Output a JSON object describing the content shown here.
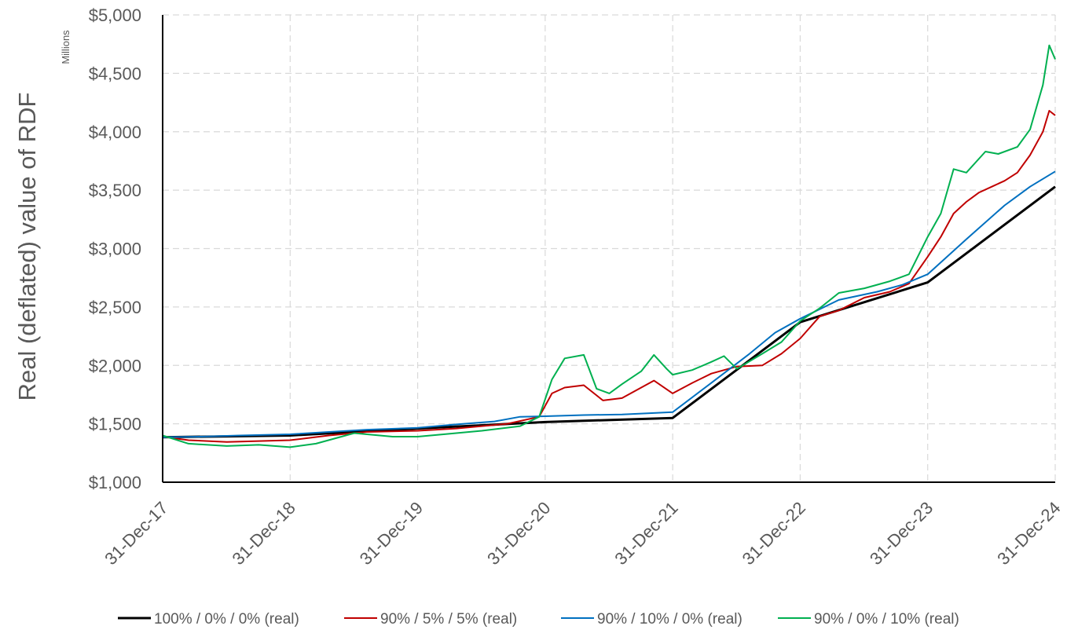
{
  "chart_data": {
    "type": "line",
    "title": "",
    "ylabel": "Real (deflated) value of RDF",
    "yunits": "Millions",
    "xlabel": "",
    "ylim": [
      1000,
      5000
    ],
    "yticks": [
      1000,
      1500,
      2000,
      2500,
      3000,
      3500,
      4000,
      4500,
      5000
    ],
    "ytick_labels": [
      "$1,000",
      "$1,500",
      "$2,000",
      "$2,500",
      "$3,000",
      "$3,500",
      "$4,000",
      "$4,500",
      "$5,000"
    ],
    "xlim": [
      2017.997,
      2024.997
    ],
    "xticks": [
      2017.997,
      2018.997,
      2019.997,
      2020.997,
      2021.997,
      2022.997,
      2023.997,
      2024.997
    ],
    "xtick_labels": [
      "31-Dec-17",
      "31-Dec-18",
      "31-Dec-19",
      "31-Dec-20",
      "31-Dec-21",
      "31-Dec-22",
      "31-Dec-23",
      "31-Dec-24"
    ],
    "grid": true,
    "legend_position": "bottom",
    "series": [
      {
        "name": "100% / 0% / 0% (real)",
        "color": "#000000",
        "x": [
          2017.997,
          2018.997,
          2019.997,
          2020.997,
          2021.997,
          2022.997,
          2023.997,
          2024.997
        ],
        "y": [
          1385,
          1400,
          1460,
          1515,
          1550,
          2370,
          2710,
          3530
        ]
      },
      {
        "name": "90% / 5% / 5% (real)",
        "color": "#c00000",
        "x": [
          2017.997,
          2018.2,
          2018.5,
          2018.997,
          2019.3,
          2019.6,
          2019.997,
          2020.3,
          2020.7,
          2020.95,
          2021.05,
          2021.15,
          2021.3,
          2021.45,
          2021.6,
          2021.75,
          2021.85,
          2021.997,
          2022.15,
          2022.3,
          2022.5,
          2022.7,
          2022.85,
          2022.997,
          2023.15,
          2023.3,
          2023.5,
          2023.7,
          2023.85,
          2023.997,
          2024.1,
          2024.2,
          2024.3,
          2024.4,
          2024.5,
          2024.6,
          2024.7,
          2024.8,
          2024.9,
          2024.95,
          2024.997
        ],
        "y": [
          1390,
          1360,
          1345,
          1360,
          1400,
          1430,
          1440,
          1460,
          1500,
          1560,
          1760,
          1810,
          1830,
          1700,
          1720,
          1810,
          1870,
          1760,
          1850,
          1930,
          1990,
          2000,
          2100,
          2230,
          2420,
          2470,
          2580,
          2630,
          2700,
          2930,
          3100,
          3300,
          3400,
          3480,
          3530,
          3580,
          3650,
          3800,
          4000,
          4180,
          4140
        ]
      },
      {
        "name": "90% / 10% / 0% (real)",
        "color": "#0070c0",
        "x": [
          2017.997,
          2018.3,
          2018.6,
          2018.997,
          2019.3,
          2019.6,
          2019.997,
          2020.3,
          2020.6,
          2020.8,
          2020.997,
          2021.3,
          2021.6,
          2021.8,
          2021.997,
          2022.3,
          2022.6,
          2022.8,
          2022.997,
          2023.3,
          2023.6,
          2023.8,
          2023.997,
          2024.3,
          2024.6,
          2024.8,
          2024.997
        ],
        "y": [
          1385,
          1390,
          1400,
          1410,
          1430,
          1450,
          1465,
          1495,
          1520,
          1560,
          1565,
          1575,
          1580,
          1590,
          1600,
          1850,
          2100,
          2280,
          2400,
          2560,
          2630,
          2690,
          2780,
          3080,
          3370,
          3530,
          3660
        ]
      },
      {
        "name": "90% / 0% / 10% (real)",
        "color": "#00b050",
        "x": [
          2017.997,
          2018.2,
          2018.5,
          2018.75,
          2018.997,
          2019.2,
          2019.5,
          2019.8,
          2019.997,
          2020.2,
          2020.5,
          2020.8,
          2020.95,
          2021.05,
          2021.15,
          2021.3,
          2021.4,
          2021.5,
          2021.6,
          2021.75,
          2021.85,
          2021.95,
          2021.997,
          2022.15,
          2022.3,
          2022.4,
          2022.5,
          2022.7,
          2022.85,
          2022.997,
          2023.15,
          2023.3,
          2023.5,
          2023.7,
          2023.85,
          2023.997,
          2024.1,
          2024.2,
          2024.3,
          2024.45,
          2024.55,
          2024.7,
          2024.8,
          2024.9,
          2024.95,
          2024.997
        ],
        "y": [
          1400,
          1330,
          1310,
          1320,
          1300,
          1330,
          1420,
          1390,
          1390,
          1410,
          1440,
          1480,
          1560,
          1880,
          2060,
          2090,
          1800,
          1760,
          1840,
          1950,
          2090,
          1970,
          1920,
          1960,
          2030,
          2080,
          1970,
          2100,
          2200,
          2380,
          2490,
          2620,
          2660,
          2720,
          2780,
          3100,
          3300,
          3680,
          3650,
          3830,
          3810,
          3870,
          4020,
          4400,
          4740,
          4620
        ]
      }
    ]
  }
}
